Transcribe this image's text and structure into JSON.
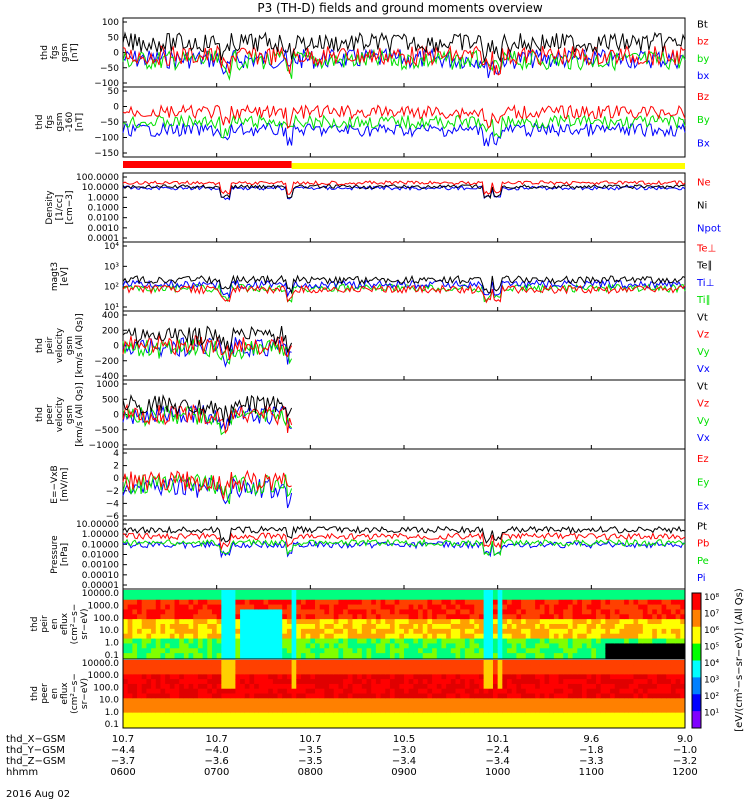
{
  "title": "P3 (TH-D) fields and ground moments overview",
  "date_label": "2016 Aug 02",
  "colors": {
    "black": "#000000",
    "red": "#ff0000",
    "green": "#00e000",
    "blue": "#0000ff",
    "yellow": "#ffff00"
  },
  "chart_data": [
    {
      "type": "line",
      "name": "fgs",
      "ylabel": [
        "thd",
        "fgs",
        "gsm",
        "[nT]"
      ],
      "yticks": [
        "100",
        "50",
        "0",
        "−50",
        "−100"
      ],
      "ylim": [
        -100,
        100
      ],
      "legend": [
        "Bt",
        "bz",
        "by",
        "bx"
      ],
      "legend_colors": [
        "black",
        "red",
        "green",
        "blue"
      ]
    },
    {
      "type": "line",
      "name": "fgs-b",
      "ylabel": [
        "thd",
        "fgs",
        "gsm",
        "-160",
        "[nT]"
      ],
      "yticks": [
        "50",
        "0",
        "−50",
        "−100",
        "−150"
      ],
      "ylim": [
        -175,
        75
      ],
      "legend": [
        "Bz",
        "By",
        "Bx"
      ],
      "legend_colors": [
        "red",
        "green",
        "blue"
      ]
    },
    {
      "type": "line",
      "name": "density",
      "ylabel": [
        "Density",
        "[1/cc]",
        "[cm−3]"
      ],
      "log": true,
      "yticks": [
        "100.0000",
        "10.0000",
        "1.0000",
        "0.1000",
        "0.0100",
        "0.0010",
        "0.0001"
      ],
      "legend": [
        "Ne",
        "Ni",
        "Npot"
      ],
      "legend_colors": [
        "red",
        "black",
        "blue"
      ]
    },
    {
      "type": "line",
      "name": "temperature",
      "ylabel": [
        "magt3",
        "[eV]"
      ],
      "log": true,
      "yticks": [
        "10⁴",
        "10³",
        "10²",
        "10¹"
      ],
      "legend": [
        "Te⊥",
        "Te∥",
        "Ti⊥",
        "Ti∥"
      ],
      "legend_colors": [
        "red",
        "black",
        "blue",
        "green"
      ]
    },
    {
      "type": "line",
      "name": "peir-velocity",
      "ylabel": [
        "thd",
        "peir",
        "velocity",
        "gsm",
        "[km/s (All Qs)]"
      ],
      "yticks": [
        "400",
        "200",
        "0",
        "−200",
        "−400"
      ],
      "ylim": [
        -400,
        400
      ],
      "legend": [
        "Vt",
        "Vz",
        "Vy",
        "Vx"
      ],
      "legend_colors": [
        "black",
        "red",
        "green",
        "blue"
      ]
    },
    {
      "type": "line",
      "name": "peer-velocity",
      "ylabel": [
        "thd",
        "peer",
        "velocity",
        "gsm",
        "[km/s (All Qs)]"
      ],
      "yticks": [
        "1000",
        "500",
        "0",
        "−500",
        "−1000"
      ],
      "ylim": [
        -1000,
        1000
      ],
      "legend": [
        "Vt",
        "Vz",
        "Vy",
        "Vx"
      ],
      "legend_colors": [
        "black",
        "red",
        "green",
        "blue"
      ]
    },
    {
      "type": "line",
      "name": "efield",
      "ylabel": [
        "E=−VxB",
        "[mV/m]"
      ],
      "yticks": [
        "4",
        "2",
        "0",
        "−2",
        "−4",
        "−6"
      ],
      "ylim": [
        -6,
        5
      ],
      "legend": [
        "Ez",
        "Ey",
        "Ex"
      ],
      "legend_colors": [
        "red",
        "green",
        "blue"
      ]
    },
    {
      "type": "line",
      "name": "pressure",
      "ylabel": [
        "Pressure",
        "[nPa]"
      ],
      "log": true,
      "yticks": [
        "10.00000",
        "1.00000",
        "0.10000",
        "0.01000",
        "0.00100",
        "0.00010",
        "0.00001"
      ],
      "legend": [
        "Pt",
        "Pb",
        "Pe",
        "Pi"
      ],
      "legend_colors": [
        "black",
        "red",
        "green",
        "blue"
      ]
    },
    {
      "type": "heatmap",
      "name": "peir-eflux",
      "ylabel": [
        "thd",
        "peir",
        "en",
        "eflux",
        "(cm²−s−",
        "sr−eV)"
      ],
      "yticks": [
        "10000.0",
        "1000.0",
        "100.0",
        "10.0",
        "1.0",
        "0.1"
      ]
    },
    {
      "type": "heatmap",
      "name": "peer-eflux",
      "ylabel": [
        "thd",
        "peer",
        "en",
        "eflux",
        "(cm²−s−",
        "sr−eV)"
      ],
      "yticks": [
        "10000.0",
        "1000.0",
        "100.0",
        "10.0",
        "1.0",
        "0.1"
      ]
    }
  ],
  "colorbar": {
    "ticks": [
      "10⁸",
      "10⁷",
      "10⁶",
      "10⁵",
      "10⁴",
      "10³",
      "10²",
      "10¹"
    ],
    "label": "[eV/(cm²−s−sr−eV)] (All Qs)"
  },
  "x_axis": {
    "rows": [
      {
        "label": "thd_X−GSM",
        "values": [
          "10.7",
          "10.7",
          "10.7",
          "10.5",
          "10.1",
          "9.6",
          "9.0"
        ]
      },
      {
        "label": "thd_Y−GSM",
        "values": [
          "−4.4",
          "−4.0",
          "−3.5",
          "−3.0",
          "−2.4",
          "−1.8",
          "−1.0"
        ]
      },
      {
        "label": "thd_Z−GSM",
        "values": [
          "−3.7",
          "−3.6",
          "−3.5",
          "−3.4",
          "−3.4",
          "−3.3",
          "−3.2"
        ]
      },
      {
        "label": "hhmm",
        "values": [
          "0600",
          "0700",
          "0800",
          "0900",
          "1000",
          "1100",
          "1200"
        ]
      }
    ]
  }
}
